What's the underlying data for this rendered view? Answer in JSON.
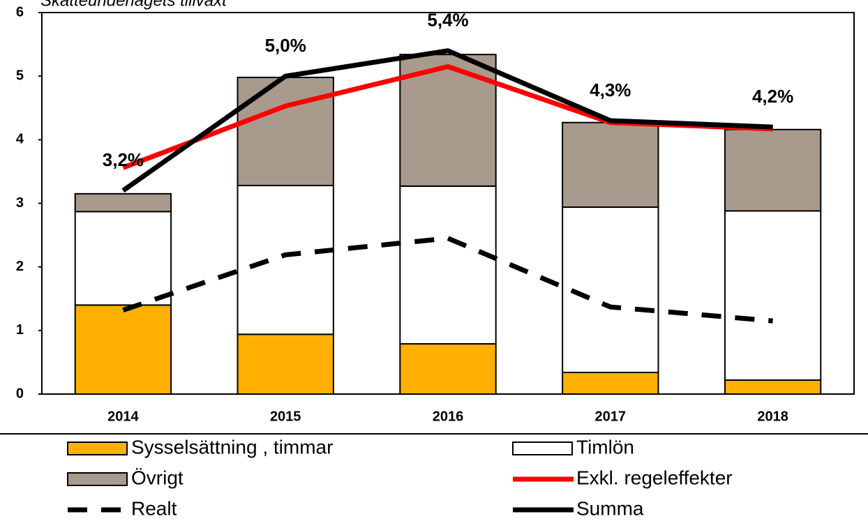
{
  "chart_data": {
    "type": "bar",
    "stacked": true,
    "title": "Skatteunderlagets tillväxt",
    "categories": [
      "2014",
      "2015",
      "2016",
      "2017",
      "2018"
    ],
    "ylim": [
      0,
      6
    ],
    "yticks": [
      0,
      1,
      2,
      3,
      4,
      5,
      6
    ],
    "series": [
      {
        "name": "Sysselsättning , timmar",
        "type": "bar",
        "color": "#ffb000",
        "values": [
          1.4,
          0.94,
          0.79,
          0.34,
          0.22
        ]
      },
      {
        "name": "Timlön",
        "type": "bar",
        "color": "#ffffff",
        "values": [
          1.47,
          2.34,
          2.48,
          2.6,
          2.66
        ]
      },
      {
        "name": "Övrigt",
        "type": "bar",
        "color": "#a89a8c",
        "values": [
          0.28,
          1.7,
          2.07,
          1.33,
          1.28
        ]
      },
      {
        "name": "Exkl. regeleffekter",
        "type": "line",
        "color": "#ff0000",
        "values": [
          3.56,
          4.53,
          5.15,
          4.27,
          4.17
        ]
      },
      {
        "name": "Realt",
        "type": "line",
        "dashed": true,
        "color": "#000000",
        "values": [
          1.32,
          2.19,
          2.45,
          1.37,
          1.15
        ]
      },
      {
        "name": "Summa",
        "type": "line",
        "color": "#000000",
        "values": [
          3.2,
          5.0,
          5.4,
          4.3,
          4.2
        ],
        "value_labels": [
          "3,2%",
          "5,0%",
          "5,4%",
          "4,3%",
          "4,2%"
        ]
      }
    ]
  }
}
